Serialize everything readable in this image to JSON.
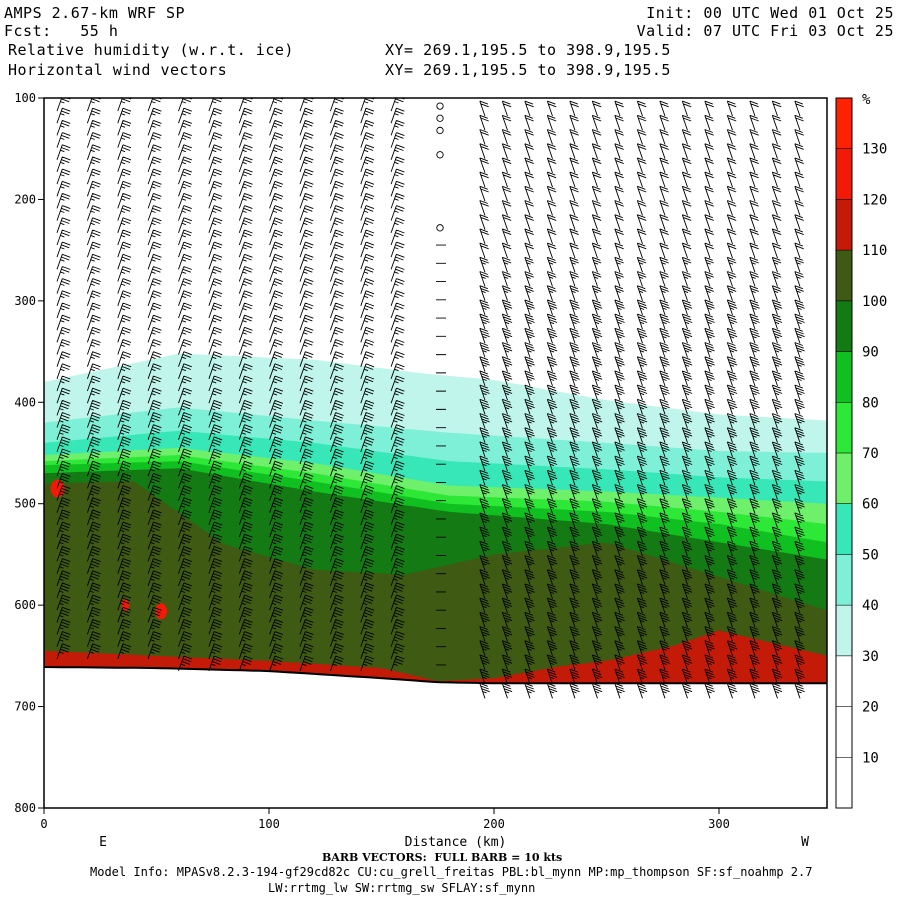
{
  "header": {
    "model": "AMPS 2.67-km WRF SP",
    "fcst": "Fcst:   55 h",
    "field1": "Relative humidity (w.r.t. ice)",
    "field2": "Horizontal wind vectors",
    "xy1": "XY= 269.1,195.5 to 398.9,195.5",
    "xy2": "XY= 269.1,195.5 to 398.9,195.5",
    "init": "Init: 00 UTC Wed 01 Oct 25",
    "valid": "Valid: 07 UTC Fri 03 Oct 25"
  },
  "footer": {
    "barb_note": "BARB VECTORS:  FULL BARB = 10 kts",
    "model_info_1": "Model Info: MPASv8.2.3-194-gf29cd82c CU:cu_grell_freitas PBL:bl_mynn MP:mp_thompson SF:sf_noahmp 2.7",
    "model_info_2": "LW:rrtmg_lw SW:rrtmg_sw SFLAY:sf_mynn"
  },
  "chart_data": {
    "type": "heatmap",
    "title": "Relative humidity (w.r.t. ice)",
    "xlabel": "Distance (km)",
    "ylabel": "",
    "xlim": [
      0,
      348
    ],
    "ylim": [
      800,
      100
    ],
    "x_ticks": [
      0,
      100,
      200,
      300
    ],
    "y_ticks": [
      100,
      200,
      300,
      400,
      500,
      600,
      700,
      800
    ],
    "left_end_label": "E",
    "right_end_label": "W",
    "colorbar": {
      "unit": "%",
      "levels": [
        10,
        20,
        30,
        40,
        50,
        60,
        70,
        80,
        90,
        100,
        110,
        120,
        130
      ],
      "colors": [
        "#ffffff",
        "#ffffff",
        "#ffffff",
        "#bff5ea",
        "#7ff0d8",
        "#38e7b8",
        "#6ef06a",
        "#2ee838",
        "#10c020",
        "#147a14",
        "#3f5a12",
        "#c41a08",
        "#f21a06",
        "#ff2200"
      ]
    },
    "terrain_pressure": [
      [
        0,
        661
      ],
      [
        50,
        662
      ],
      [
        100,
        665
      ],
      [
        150,
        672
      ],
      [
        175,
        676
      ],
      [
        200,
        677
      ],
      [
        250,
        677
      ],
      [
        300,
        677
      ],
      [
        348,
        677
      ]
    ],
    "contours": [
      {
        "level": 30,
        "pressure": [
          [
            0,
            380
          ],
          [
            60,
            352
          ],
          [
            120,
            358
          ],
          [
            170,
            372
          ],
          [
            200,
            378
          ],
          [
            250,
            398
          ],
          [
            300,
            412
          ],
          [
            348,
            418
          ]
        ]
      },
      {
        "level": 40,
        "pressure": [
          [
            0,
            420
          ],
          [
            60,
            405
          ],
          [
            120,
            418
          ],
          [
            180,
            430
          ],
          [
            250,
            440
          ],
          [
            300,
            448
          ],
          [
            348,
            450
          ]
        ]
      },
      {
        "level": 50,
        "pressure": [
          [
            0,
            440
          ],
          [
            60,
            428
          ],
          [
            120,
            440
          ],
          [
            180,
            458
          ],
          [
            250,
            466
          ],
          [
            300,
            474
          ],
          [
            348,
            478
          ]
        ]
      },
      {
        "level": 60,
        "pressure": [
          [
            0,
            452
          ],
          [
            60,
            445
          ],
          [
            120,
            460
          ],
          [
            180,
            482
          ],
          [
            250,
            488
          ],
          [
            300,
            494
          ],
          [
            348,
            500
          ]
        ]
      },
      {
        "level": 70,
        "pressure": [
          [
            0,
            458
          ],
          [
            60,
            452
          ],
          [
            120,
            470
          ],
          [
            180,
            492
          ],
          [
            250,
            498
          ],
          [
            300,
            508
          ],
          [
            348,
            520
          ]
        ]
      },
      {
        "level": 80,
        "pressure": [
          [
            0,
            462
          ],
          [
            60,
            458
          ],
          [
            120,
            478
          ],
          [
            180,
            500
          ],
          [
            250,
            508
          ],
          [
            300,
            520
          ],
          [
            348,
            538
          ]
        ]
      },
      {
        "level": 90,
        "pressure": [
          [
            0,
            470
          ],
          [
            60,
            465
          ],
          [
            120,
            488
          ],
          [
            180,
            508
          ],
          [
            250,
            520
          ],
          [
            300,
            538
          ],
          [
            348,
            555
          ]
        ]
      },
      {
        "level": 100,
        "pressure": [
          [
            0,
            480
          ],
          [
            40,
            478
          ],
          [
            80,
            540
          ],
          [
            120,
            565
          ],
          [
            160,
            570
          ],
          [
            200,
            550
          ],
          [
            250,
            538
          ],
          [
            300,
            572
          ],
          [
            348,
            605
          ]
        ]
      },
      {
        "level": 110,
        "pressure": [
          [
            0,
            645
          ],
          [
            50,
            650
          ],
          [
            100,
            655
          ],
          [
            150,
            662
          ],
          [
            175,
            675
          ],
          [
            200,
            672
          ],
          [
            230,
            660
          ],
          [
            250,
            655
          ],
          [
            280,
            640
          ],
          [
            300,
            625
          ],
          [
            348,
            650
          ]
        ]
      }
    ],
    "wind_barbs": "horizontal wind barbs along cross-section; full barb = 10 kts"
  }
}
